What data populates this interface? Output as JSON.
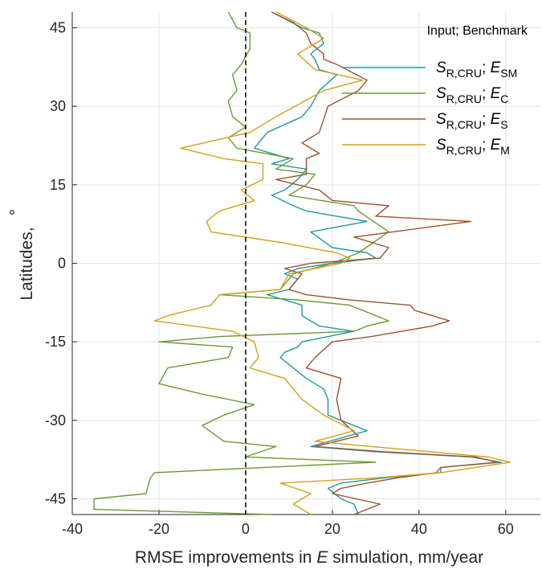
{
  "chart_data": {
    "type": "line",
    "orientation": "horizontal-lines-vertical-profile",
    "xlabel": {
      "prefix": "RMSE improvements in ",
      "italic": "E",
      "suffix": " simulation, mm/year"
    },
    "ylabel": {
      "text": "Latitudes, ",
      "degree": "°"
    },
    "xlim": [
      -40,
      68
    ],
    "ylim": [
      -48,
      48
    ],
    "xticks": [
      -40,
      -20,
      0,
      20,
      40,
      60
    ],
    "yticks": [
      -45,
      -30,
      -15,
      0,
      15,
      30,
      45
    ],
    "grid": true,
    "zero_line": {
      "x": 0,
      "style": "dashed",
      "color": "#000000"
    },
    "legend": {
      "title": "Input; Benchmark",
      "placement": "top-right"
    },
    "series": [
      {
        "label": {
          "s": "S",
          "s_sub": "R,CRU",
          "sep": "; ",
          "e": "E",
          "e_sub": "SM"
        },
        "color": "#1f9aa3",
        "points": [
          [
            26,
            -48
          ],
          [
            25,
            -46
          ],
          [
            22,
            -45
          ],
          [
            19,
            -43
          ],
          [
            22,
            -42
          ],
          [
            32,
            -41
          ],
          [
            45,
            -40
          ],
          [
            45,
            -39
          ],
          [
            59,
            -38
          ],
          [
            52,
            -37
          ],
          [
            30,
            -36
          ],
          [
            15,
            -35
          ],
          [
            28,
            -32
          ],
          [
            19,
            -29
          ],
          [
            19,
            -26
          ],
          [
            18,
            -24
          ],
          [
            14,
            -22
          ],
          [
            11,
            -20
          ],
          [
            8,
            -18
          ],
          [
            9,
            -17
          ],
          [
            12,
            -16
          ],
          [
            13,
            -15
          ],
          [
            25,
            -13
          ],
          [
            17,
            -12
          ],
          [
            13,
            -10
          ],
          [
            13,
            -8
          ],
          [
            5,
            -6
          ],
          [
            10,
            -5
          ],
          [
            12,
            -3
          ],
          [
            9,
            -2
          ],
          [
            12,
            -1
          ],
          [
            20,
            0
          ],
          [
            30,
            1
          ],
          [
            28,
            2
          ],
          [
            20,
            3
          ],
          [
            15,
            6
          ],
          [
            28,
            8
          ],
          [
            14,
            10
          ],
          [
            11,
            11
          ],
          [
            6,
            13
          ],
          [
            9,
            14
          ],
          [
            12,
            16
          ],
          [
            14,
            18
          ],
          [
            6,
            19
          ],
          [
            10,
            20
          ],
          [
            2,
            22
          ],
          [
            5,
            25
          ],
          [
            13,
            28
          ],
          [
            15,
            30
          ],
          [
            17,
            33
          ],
          [
            21,
            36
          ],
          [
            17,
            37
          ],
          [
            16,
            39
          ],
          [
            15,
            40
          ],
          [
            18,
            42
          ],
          [
            17,
            44
          ],
          [
            13,
            45
          ],
          [
            6,
            48
          ]
        ]
      },
      {
        "label": {
          "s": "S",
          "s_sub": "R,CRU",
          "sep": "; ",
          "e": "E",
          "e_sub": "C"
        },
        "color": "#6b9a34",
        "points": [
          [
            6,
            -48
          ],
          [
            -35,
            -47
          ],
          [
            -35,
            -45
          ],
          [
            -23,
            -44
          ],
          [
            -22,
            -41
          ],
          [
            -21,
            -40
          ],
          [
            30,
            -38
          ],
          [
            0,
            -37
          ],
          [
            7,
            -35
          ],
          [
            -5,
            -34
          ],
          [
            -10,
            -31
          ],
          [
            -5,
            -29
          ],
          [
            2,
            -27
          ],
          [
            -10,
            -25
          ],
          [
            -20,
            -23
          ],
          [
            -18,
            -20
          ],
          [
            -4,
            -18
          ],
          [
            -3,
            -16
          ],
          [
            -20,
            -15
          ],
          [
            -6,
            -14
          ],
          [
            25,
            -13
          ],
          [
            28,
            -12
          ],
          [
            33,
            -11
          ],
          [
            24,
            -8
          ],
          [
            12,
            -7
          ],
          [
            -6,
            -6
          ],
          [
            8,
            -5
          ],
          [
            11,
            -2
          ],
          [
            20,
            0
          ],
          [
            26,
            2
          ],
          [
            33,
            6
          ],
          [
            26,
            10
          ],
          [
            25,
            11
          ],
          [
            10,
            13
          ],
          [
            14,
            15
          ],
          [
            16,
            17
          ],
          [
            7,
            18
          ],
          [
            11,
            20
          ],
          [
            -2,
            22
          ],
          [
            -4,
            24
          ],
          [
            0,
            26
          ],
          [
            -3,
            28
          ],
          [
            -4,
            31
          ],
          [
            -2,
            33
          ],
          [
            -3,
            36
          ],
          [
            -1,
            38
          ],
          [
            1,
            41
          ],
          [
            1,
            44
          ],
          [
            -2,
            45
          ],
          [
            -4,
            48
          ]
        ]
      },
      {
        "label": {
          "s": "S",
          "s_sub": "R,CRU",
          "sep": "; ",
          "e": "E",
          "e_sub": "S"
        },
        "color": "#a0522d",
        "points": [
          [
            25,
            -48
          ],
          [
            31,
            -46
          ],
          [
            20,
            -44
          ],
          [
            22,
            -43
          ],
          [
            28,
            -42
          ],
          [
            35,
            -41
          ],
          [
            44,
            -40
          ],
          [
            45,
            -39
          ],
          [
            58,
            -38
          ],
          [
            53,
            -37
          ],
          [
            32,
            -36
          ],
          [
            16,
            -35
          ],
          [
            26,
            -33
          ],
          [
            22,
            -30
          ],
          [
            21,
            -26
          ],
          [
            22,
            -22
          ],
          [
            14,
            -20
          ],
          [
            16,
            -18
          ],
          [
            20,
            -15
          ],
          [
            29,
            -14
          ],
          [
            43,
            -12
          ],
          [
            47,
            -11
          ],
          [
            39,
            -9
          ],
          [
            38,
            -8
          ],
          [
            24,
            -7
          ],
          [
            14,
            -6
          ],
          [
            10,
            -5
          ],
          [
            11,
            -4
          ],
          [
            13,
            -2
          ],
          [
            9,
            -1
          ],
          [
            15,
            0
          ],
          [
            31,
            1
          ],
          [
            33,
            3
          ],
          [
            25,
            5
          ],
          [
            52,
            8
          ],
          [
            30,
            9
          ],
          [
            33,
            11
          ],
          [
            20,
            12
          ],
          [
            17,
            14
          ],
          [
            7,
            16
          ],
          [
            14,
            17
          ],
          [
            14,
            20
          ],
          [
            17,
            21
          ],
          [
            13,
            23
          ],
          [
            17,
            25
          ],
          [
            19,
            30
          ],
          [
            26,
            33
          ],
          [
            28,
            35
          ],
          [
            21,
            38
          ],
          [
            18,
            39
          ],
          [
            18,
            40
          ],
          [
            15,
            42
          ],
          [
            14,
            44
          ],
          [
            11,
            46
          ],
          [
            6,
            48
          ]
        ]
      },
      {
        "label": {
          "s": "S",
          "s_sub": "R,CRU",
          "sep": "; ",
          "e": "E",
          "e_sub": "M"
        },
        "color": "#d4a017",
        "points": [
          [
            15,
            -48
          ],
          [
            11,
            -46
          ],
          [
            15,
            -44
          ],
          [
            8,
            -42
          ],
          [
            30,
            -41
          ],
          [
            45,
            -40
          ],
          [
            61,
            -38
          ],
          [
            56,
            -37
          ],
          [
            29,
            -35
          ],
          [
            16,
            -34
          ],
          [
            25,
            -32
          ],
          [
            18,
            -29
          ],
          [
            13,
            -26
          ],
          [
            11,
            -24
          ],
          [
            9,
            -22
          ],
          [
            1,
            -20
          ],
          [
            3,
            -18
          ],
          [
            2,
            -15
          ],
          [
            -3,
            -13
          ],
          [
            -21,
            -11
          ],
          [
            -18,
            -10
          ],
          [
            -8,
            -8
          ],
          [
            -6,
            -6
          ],
          [
            8,
            -5
          ],
          [
            10,
            -2
          ],
          [
            22,
            0
          ],
          [
            24,
            1
          ],
          [
            21,
            2
          ],
          [
            8,
            4
          ],
          [
            -8,
            6
          ],
          [
            -9,
            8
          ],
          [
            -6,
            10
          ],
          [
            2,
            12
          ],
          [
            -1,
            14
          ],
          [
            4,
            16
          ],
          [
            4,
            19
          ],
          [
            -5,
            20
          ],
          [
            -15,
            22
          ],
          [
            1,
            25
          ],
          [
            7,
            28
          ],
          [
            18,
            33
          ],
          [
            27,
            35
          ],
          [
            16,
            37
          ],
          [
            12,
            40
          ],
          [
            18,
            43
          ],
          [
            14,
            45
          ],
          [
            7,
            48
          ]
        ]
      }
    ]
  }
}
